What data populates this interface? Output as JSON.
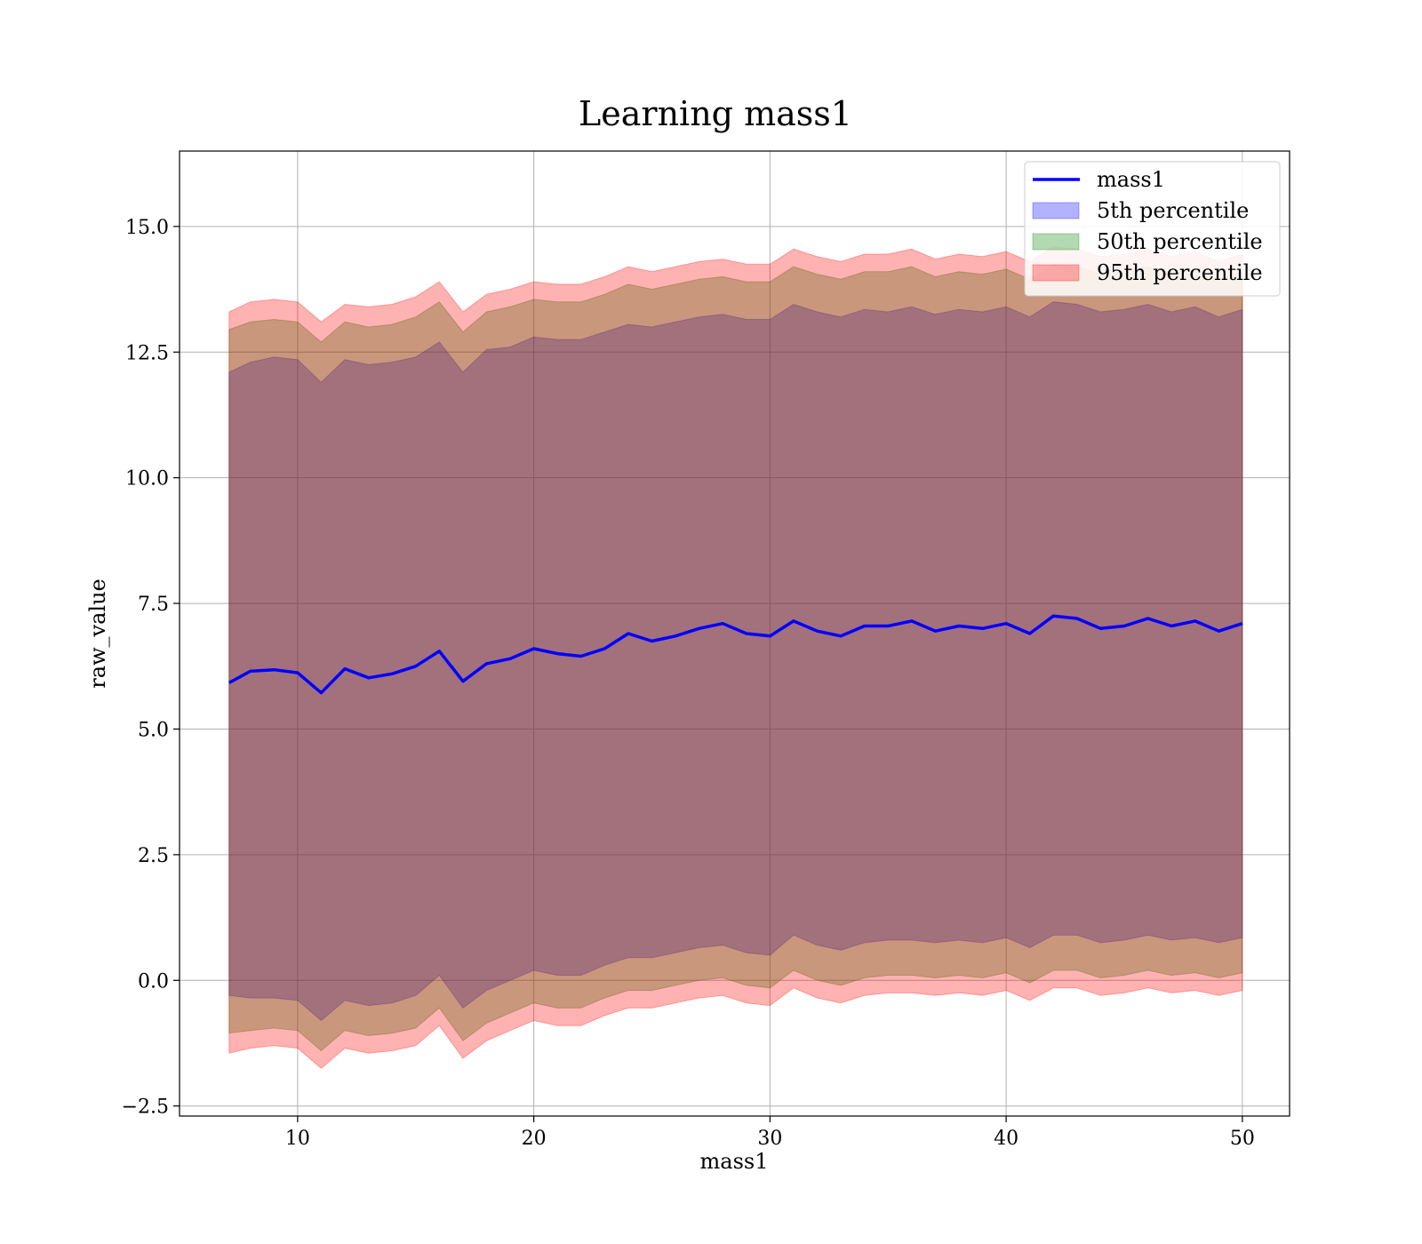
{
  "chart_data": {
    "type": "area",
    "title": "Learning mass1",
    "xlabel": "mass1",
    "ylabel": "raw_value",
    "xlim": [
      5,
      52
    ],
    "ylim": [
      -2.7,
      16.5
    ],
    "x_ticks": [
      10,
      20,
      30,
      40,
      50
    ],
    "x_tick_labels": [
      "10",
      "20",
      "30",
      "40",
      "50"
    ],
    "y_ticks": [
      -2.5,
      0.0,
      2.5,
      5.0,
      7.5,
      10.0,
      12.5,
      15.0
    ],
    "y_tick_labels": [
      "−2.5",
      "0.0",
      "2.5",
      "5.0",
      "7.5",
      "10.0",
      "12.5",
      "15.0"
    ],
    "grid": true,
    "legend_position": "top-right",
    "legend": [
      "mass1",
      "5th percentile",
      "50th percentile",
      "95th percentile"
    ],
    "colors": {
      "line": "#0000ff",
      "band_5": "#0000ff",
      "band_50": "#008000",
      "band_95": "#ff0000",
      "grid": "#b0b0b0"
    },
    "x": [
      7.1,
      8,
      9,
      10,
      11,
      12,
      13,
      14,
      15,
      16,
      17,
      18,
      19,
      20,
      21,
      22,
      23,
      24,
      25,
      26,
      27,
      28,
      29,
      30,
      31,
      32,
      33,
      34,
      35,
      36,
      37,
      38,
      39,
      40,
      41,
      42,
      43,
      44,
      45,
      46,
      47,
      48,
      49,
      50
    ],
    "series": [
      {
        "name": "mass1",
        "type": "line",
        "values": [
          5.92,
          6.15,
          6.18,
          6.12,
          5.72,
          6.2,
          6.02,
          6.1,
          6.25,
          6.55,
          5.95,
          6.3,
          6.4,
          6.6,
          6.5,
          6.45,
          6.6,
          6.9,
          6.75,
          6.85,
          7.0,
          7.1,
          6.9,
          6.85,
          7.15,
          6.95,
          6.85,
          7.05,
          7.05,
          7.15,
          6.95,
          7.05,
          7.0,
          7.1,
          6.9,
          7.25,
          7.2,
          7.0,
          7.05,
          7.2,
          7.05,
          7.15,
          6.95,
          7.1
        ]
      },
      {
        "name": "5th percentile",
        "type": "band",
        "lower": [
          -0.3,
          -0.35,
          -0.35,
          -0.4,
          -0.8,
          -0.4,
          -0.5,
          -0.45,
          -0.3,
          0.1,
          -0.55,
          -0.2,
          0.0,
          0.2,
          0.1,
          0.1,
          0.3,
          0.45,
          0.45,
          0.55,
          0.65,
          0.7,
          0.55,
          0.5,
          0.9,
          0.7,
          0.6,
          0.75,
          0.8,
          0.8,
          0.75,
          0.8,
          0.75,
          0.85,
          0.65,
          0.9,
          0.9,
          0.75,
          0.8,
          0.9,
          0.8,
          0.85,
          0.75,
          0.85
        ],
        "upper": [
          12.1,
          12.3,
          12.4,
          12.35,
          11.9,
          12.35,
          12.25,
          12.3,
          12.4,
          12.7,
          12.1,
          12.55,
          12.6,
          12.8,
          12.75,
          12.75,
          12.9,
          13.05,
          13.0,
          13.1,
          13.2,
          13.25,
          13.15,
          13.15,
          13.45,
          13.3,
          13.2,
          13.35,
          13.3,
          13.4,
          13.25,
          13.35,
          13.3,
          13.4,
          13.2,
          13.5,
          13.45,
          13.3,
          13.35,
          13.45,
          13.3,
          13.4,
          13.2,
          13.35
        ]
      },
      {
        "name": "50th percentile",
        "type": "band",
        "lower": [
          -1.05,
          -1.0,
          -0.95,
          -1.0,
          -1.4,
          -1.0,
          -1.1,
          -1.05,
          -0.95,
          -0.55,
          -1.2,
          -0.85,
          -0.65,
          -0.45,
          -0.55,
          -0.55,
          -0.35,
          -0.2,
          -0.2,
          -0.1,
          0.0,
          0.05,
          -0.1,
          -0.15,
          0.2,
          0.0,
          -0.1,
          0.05,
          0.1,
          0.1,
          0.05,
          0.1,
          0.05,
          0.15,
          -0.05,
          0.2,
          0.2,
          0.05,
          0.1,
          0.2,
          0.1,
          0.15,
          0.05,
          0.15
        ],
        "upper": [
          12.95,
          13.1,
          13.15,
          13.1,
          12.7,
          13.1,
          13.0,
          13.05,
          13.2,
          13.5,
          12.9,
          13.3,
          13.4,
          13.55,
          13.5,
          13.5,
          13.65,
          13.85,
          13.75,
          13.85,
          13.95,
          14.0,
          13.9,
          13.9,
          14.2,
          14.05,
          13.95,
          14.1,
          14.1,
          14.2,
          14.0,
          14.1,
          14.05,
          14.15,
          13.95,
          14.25,
          14.2,
          14.05,
          14.1,
          14.2,
          14.05,
          14.15,
          13.95,
          14.1
        ]
      },
      {
        "name": "95th percentile",
        "type": "band",
        "lower": [
          -1.45,
          -1.35,
          -1.3,
          -1.35,
          -1.75,
          -1.35,
          -1.45,
          -1.4,
          -1.3,
          -0.9,
          -1.55,
          -1.2,
          -1.0,
          -0.8,
          -0.9,
          -0.9,
          -0.7,
          -0.55,
          -0.55,
          -0.45,
          -0.35,
          -0.3,
          -0.45,
          -0.5,
          -0.15,
          -0.35,
          -0.45,
          -0.3,
          -0.25,
          -0.25,
          -0.3,
          -0.25,
          -0.3,
          -0.2,
          -0.4,
          -0.15,
          -0.15,
          -0.3,
          -0.25,
          -0.15,
          -0.25,
          -0.2,
          -0.3,
          -0.2
        ],
        "upper": [
          13.3,
          13.5,
          13.55,
          13.5,
          13.1,
          13.45,
          13.4,
          13.45,
          13.6,
          13.9,
          13.3,
          13.65,
          13.75,
          13.9,
          13.85,
          13.85,
          14.0,
          14.2,
          14.1,
          14.2,
          14.3,
          14.35,
          14.25,
          14.25,
          14.55,
          14.4,
          14.3,
          14.45,
          14.45,
          14.55,
          14.35,
          14.45,
          14.4,
          14.5,
          14.3,
          14.6,
          14.55,
          14.4,
          14.45,
          14.55,
          14.4,
          14.5,
          14.3,
          14.45
        ]
      }
    ]
  }
}
